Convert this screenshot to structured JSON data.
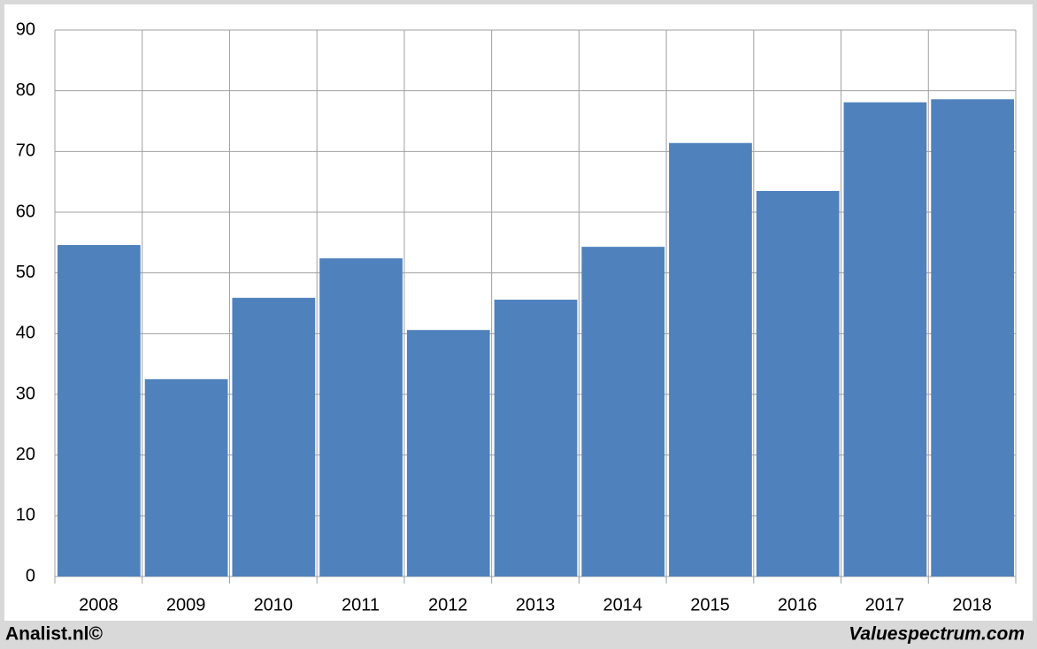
{
  "chart_data": {
    "type": "bar",
    "categories": [
      "2008",
      "2009",
      "2010",
      "2011",
      "2012",
      "2013",
      "2014",
      "2015",
      "2016",
      "2017",
      "2018"
    ],
    "values": [
      54.6,
      32.5,
      45.9,
      52.4,
      40.6,
      45.6,
      54.3,
      71.4,
      63.5,
      78.1,
      78.6
    ],
    "color": "#4f81bd",
    "ylim": [
      0,
      90
    ],
    "yticks": [
      0,
      10,
      20,
      30,
      40,
      50,
      60,
      70,
      80,
      90
    ],
    "grid": true,
    "footer_left": "Analist.nl©",
    "footer_right": "Valuespectrum.com"
  }
}
